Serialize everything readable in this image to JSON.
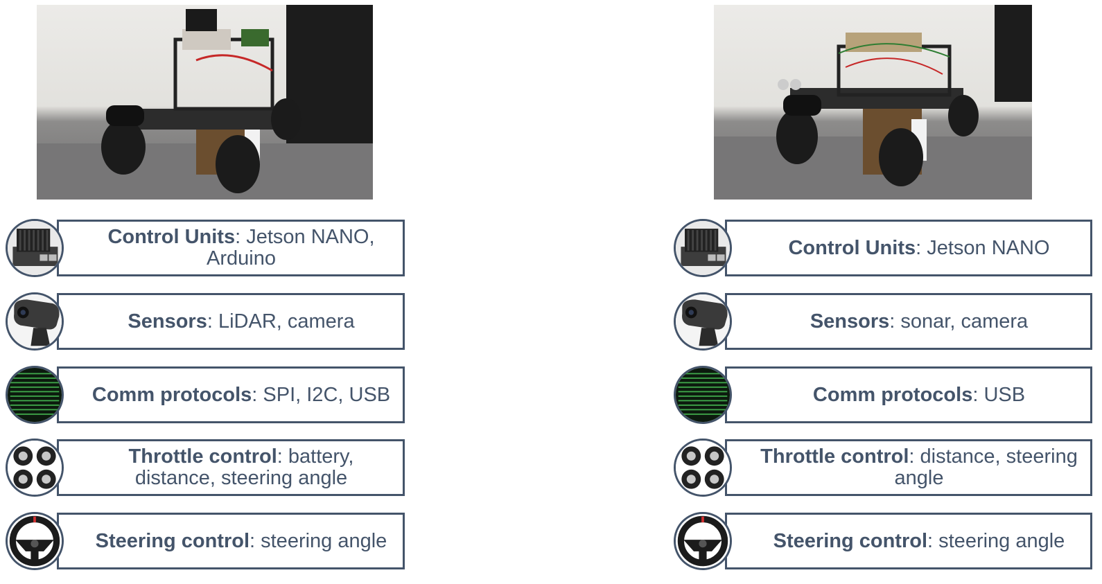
{
  "left": {
    "rows": [
      {
        "key": "Control Units",
        "value": ": Jetson NANO, Arduino",
        "icon": "jetson-board-icon"
      },
      {
        "key": "Sensors",
        "value": ": LiDAR, camera",
        "icon": "webcam-icon"
      },
      {
        "key": "Comm protocols",
        "value": ": SPI, I2C, USB",
        "icon": "binary-code-icon"
      },
      {
        "key": "Throttle control",
        "value": ": battery, distance, steering angle",
        "icon": "wheels-icon"
      },
      {
        "key": "Steering control",
        "value": ": steering angle",
        "icon": "steering-wheel-icon"
      }
    ]
  },
  "right": {
    "rows": [
      {
        "key": "Control Units",
        "value": ": Jetson NANO",
        "icon": "jetson-board-icon"
      },
      {
        "key": "Sensors",
        "value": ": sonar, camera",
        "icon": "webcam-icon"
      },
      {
        "key": "Comm protocols",
        "value": ": USB",
        "icon": "binary-code-icon"
      },
      {
        "key": "Throttle control",
        "value": ": distance, steering angle",
        "icon": "wheels-icon"
      },
      {
        "key": "Steering control",
        "value": ": steering angle",
        "icon": "steering-wheel-icon"
      }
    ]
  },
  "colors": {
    "border": "#44546a",
    "text": "#44546a",
    "matrix_green": "#3fa64a"
  }
}
